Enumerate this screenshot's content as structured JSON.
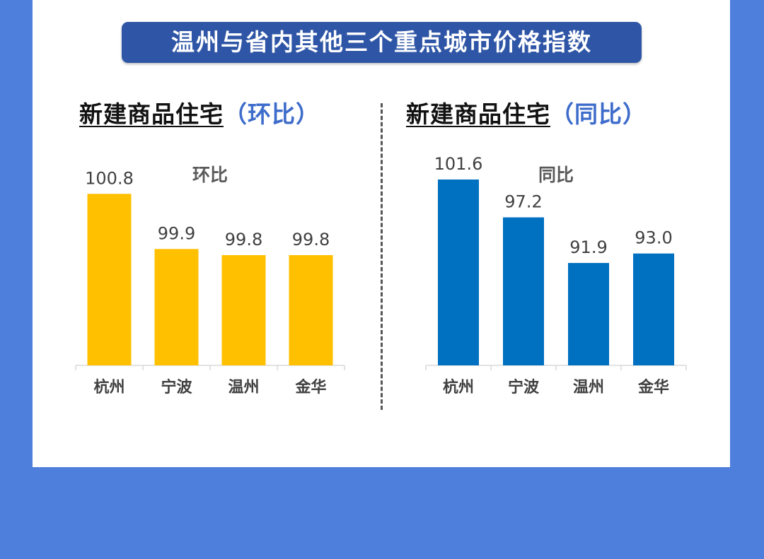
{
  "page_title": "温州与省内其他三个重点城市价格指数",
  "sections": [
    {
      "heading": "新建商品住宅",
      "subheading": "（环比）"
    },
    {
      "heading": "新建商品住宅",
      "subheading": "（同比）"
    }
  ],
  "colors": {
    "background": "#4f7fdc",
    "banner": "#2f56a6",
    "series_mom": "#ffc000",
    "series_yoy": "#0070c0"
  },
  "chart_data": [
    {
      "type": "bar",
      "title": "环比",
      "categories": [
        "杭州",
        "宁波",
        "温州",
        "金华"
      ],
      "values": [
        100.8,
        99.9,
        99.8,
        99.8
      ],
      "value_labels": [
        "100.8",
        "99.9",
        "99.8",
        "99.8"
      ],
      "ylim": [
        98.0,
        101.6
      ],
      "grid": false,
      "color": "#ffc000"
    },
    {
      "type": "bar",
      "title": "同比",
      "categories": [
        "杭州",
        "宁波",
        "温州",
        "金华"
      ],
      "values": [
        101.6,
        97.2,
        91.9,
        93.0
      ],
      "value_labels": [
        "101.6",
        "97.2",
        "91.9",
        "93.0"
      ],
      "ylim": [
        80.0,
        101.6
      ],
      "grid": false,
      "color": "#0070c0"
    }
  ]
}
